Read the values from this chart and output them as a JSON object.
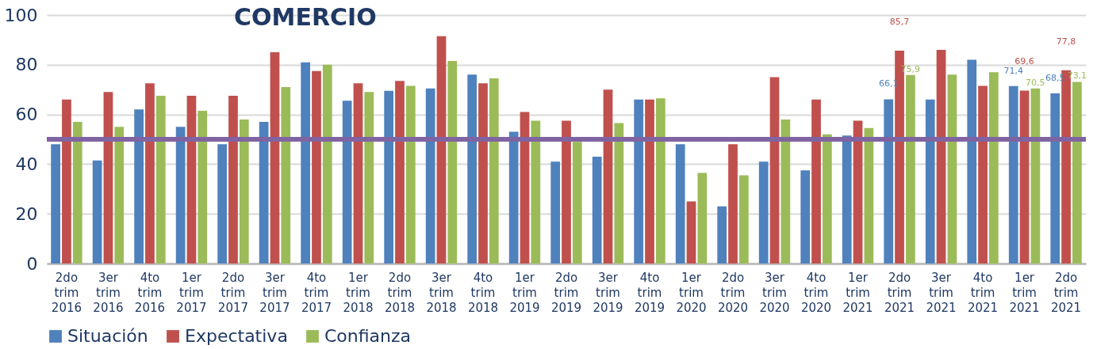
{
  "chart_data": {
    "type": "bar",
    "title": "COMERCIO",
    "categories": [
      "2do trim 2016",
      "3er trim 2016",
      "4to trim 2016",
      "1er trim 2017",
      "2do trim 2017",
      "3er trim 2017",
      "4to trim 2017",
      "1er trim 2018",
      "2do trim 2018",
      "3er trim 2018",
      "4to trim 2018",
      "1er trim 2019",
      "2do trim 2019",
      "3er trim 2019",
      "4to trim 2019",
      "1er trim 2020",
      "2do trim 2020",
      "3er trim 2020",
      "4to trim 2020",
      "1er trim 2021",
      "2do trim 2021",
      "3er trim 2021",
      "4to trim 2021",
      "1er trim 2021",
      "2do trim 2021"
    ],
    "series": [
      {
        "name": "Situación",
        "color": "#4f81bd",
        "values": [
          48,
          41.5,
          62,
          55,
          48,
          57,
          81,
          65.5,
          69.5,
          70.5,
          76,
          53,
          41,
          43,
          66,
          48,
          23,
          41,
          37.5,
          51.5,
          66.1,
          66,
          82,
          71.4,
          68.5
        ],
        "value_labels": [
          null,
          null,
          null,
          null,
          null,
          null,
          null,
          null,
          null,
          null,
          null,
          null,
          null,
          null,
          null,
          null,
          null,
          null,
          null,
          null,
          "66,1",
          null,
          null,
          "71,4",
          "68,5"
        ]
      },
      {
        "name": "Expectativa",
        "color": "#c0504d",
        "values": [
          66,
          69,
          72.5,
          67.5,
          67.5,
          85,
          77.5,
          72.5,
          73.5,
          91.5,
          72.5,
          61,
          57.5,
          70,
          66,
          25,
          48,
          75,
          66,
          57.5,
          85.7,
          86,
          71.5,
          69.6,
          77.8
        ],
        "value_labels": [
          null,
          null,
          null,
          null,
          null,
          null,
          null,
          null,
          null,
          null,
          null,
          null,
          null,
          null,
          null,
          null,
          null,
          null,
          null,
          null,
          "85,7",
          null,
          null,
          "69,6",
          "77,8"
        ]
      },
      {
        "name": "Confianza",
        "color": "#9bbb59",
        "values": [
          57,
          55,
          67.5,
          61.5,
          58,
          71,
          80,
          69,
          71.5,
          81.5,
          74.5,
          57.5,
          49,
          56.5,
          66.5,
          36.5,
          35.5,
          58,
          52,
          54.5,
          75.9,
          76,
          77,
          70.5,
          73.1
        ],
        "value_labels": [
          null,
          null,
          null,
          null,
          null,
          null,
          null,
          null,
          null,
          null,
          null,
          null,
          null,
          null,
          null,
          null,
          null,
          null,
          null,
          null,
          "75,9",
          null,
          null,
          "70,5",
          "73,1"
        ]
      }
    ],
    "ylim": [
      0,
      100
    ],
    "yticks": [
      0,
      20,
      40,
      60,
      80,
      100
    ],
    "grid": "y",
    "legend": "bottom",
    "ref_lines": [
      {
        "axis": "y",
        "value": 50,
        "color": "#8064a2"
      }
    ]
  }
}
